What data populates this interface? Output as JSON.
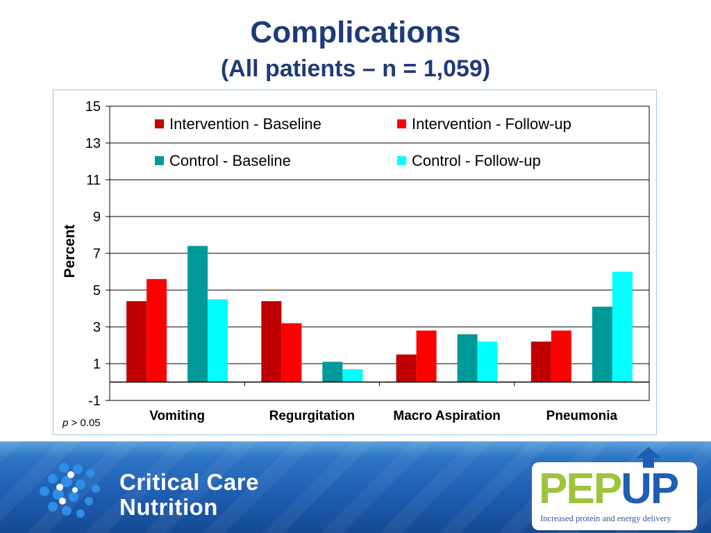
{
  "slide": {
    "title": "Complications",
    "subtitle": "(All patients – n = 1,059)",
    "p_label": "p",
    "p_value": " > 0.05"
  },
  "footer": {
    "ccn_line1": "Critical Care",
    "ccn_line2": "Nutrition",
    "pepup_part1": "PEP",
    "pepup_part2": "UP",
    "pepup_tagline": "Increased protein and energy delivery"
  },
  "chart_data": {
    "type": "bar",
    "title": "",
    "xlabel": "",
    "ylabel": "Percent",
    "ylim": [
      -1,
      15
    ],
    "yticks": [
      -1,
      1,
      3,
      5,
      7,
      9,
      11,
      13,
      15
    ],
    "grid": true,
    "legend_position": "top",
    "categories": [
      "Vomiting",
      "Regurgitation",
      "Macro Aspiration",
      "Pneumonia"
    ],
    "series": [
      {
        "name": "Intervention - Baseline",
        "color": "#c00000",
        "values": [
          4.4,
          4.4,
          1.5,
          2.2
        ]
      },
      {
        "name": "Intervention - Follow-up",
        "color": "#ff0000",
        "values": [
          5.6,
          3.2,
          2.8,
          2.8
        ]
      },
      {
        "name": "Control - Baseline",
        "color": "#009999",
        "values": [
          7.4,
          1.1,
          2.6,
          4.1
        ]
      },
      {
        "name": "Control - Follow-up",
        "color": "#00ffff",
        "values": [
          4.5,
          0.7,
          2.2,
          6.0
        ]
      }
    ]
  }
}
